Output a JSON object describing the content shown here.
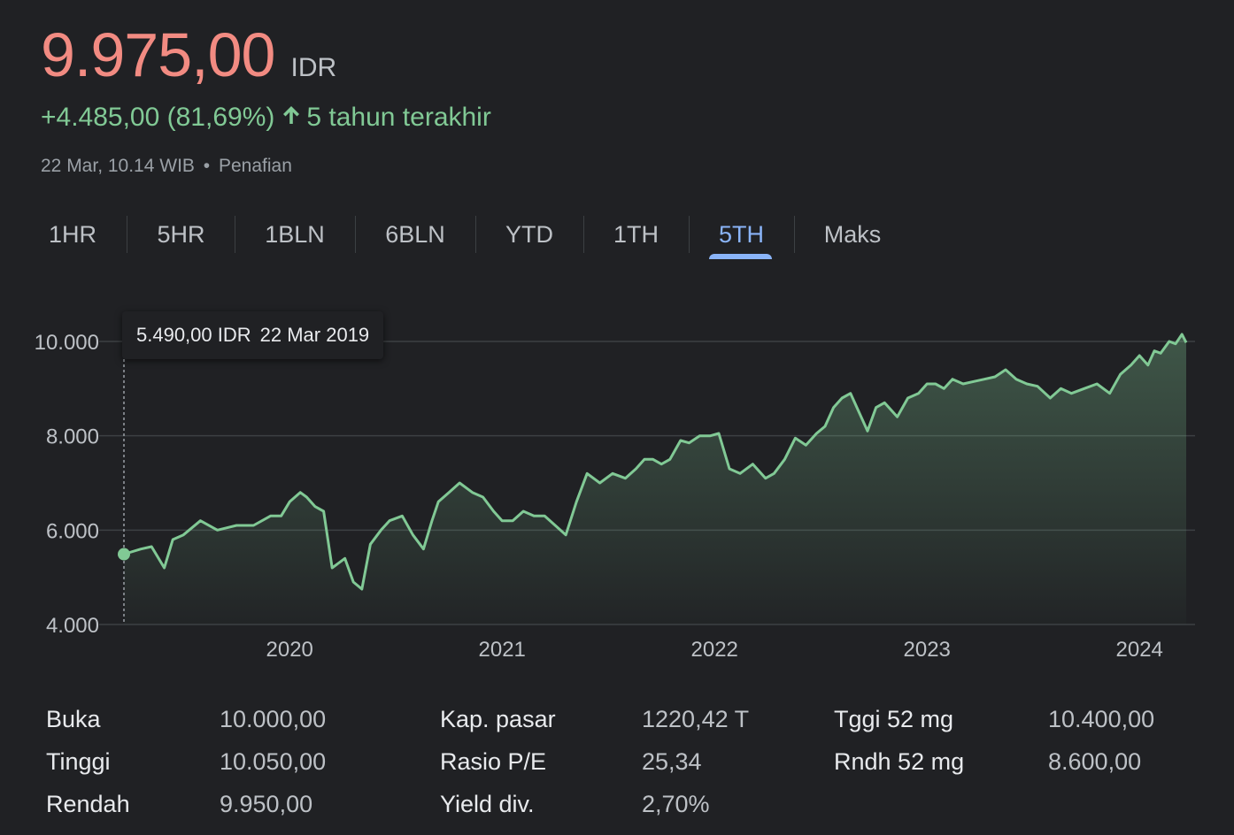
{
  "quote": {
    "price": "9.975,00",
    "currency": "IDR",
    "change": "+4.485,00 (81,69%)",
    "period_label": "5 tahun terakhir",
    "timestamp": "22 Mar, 10.14 WIB",
    "separator": "•",
    "disclaimer": "Penafian",
    "up_icon": "arrow-up-icon"
  },
  "tabs": [
    {
      "label": "1HR",
      "active": false
    },
    {
      "label": "5HR",
      "active": false
    },
    {
      "label": "1BLN",
      "active": false
    },
    {
      "label": "6BLN",
      "active": false
    },
    {
      "label": "YTD",
      "active": false
    },
    {
      "label": "1TH",
      "active": false
    },
    {
      "label": "5TH",
      "active": true
    },
    {
      "label": "Maks",
      "active": false
    }
  ],
  "tooltip": {
    "value": "5.490,00 IDR",
    "date": "22 Mar 2019"
  },
  "colors": {
    "background": "#202124",
    "price": "#f28b82",
    "positive": "#81c995",
    "accent": "#8ab4f8",
    "grid": "#3c4043"
  },
  "chart_data": {
    "type": "area",
    "title": "",
    "xlabel": "",
    "ylabel": "",
    "ylim": [
      4000,
      10000
    ],
    "y_ticks": [
      10000,
      8000,
      6000,
      4000
    ],
    "y_tick_labels": [
      "10.000",
      "8.000",
      "6.000",
      "4.000"
    ],
    "x_ticks": [
      2020,
      2021,
      2022,
      2023,
      2024
    ],
    "x_tick_labels": [
      "2020",
      "2021",
      "2022",
      "2023",
      "2024"
    ],
    "x_range": [
      2019.22,
      2024.22
    ],
    "grid": "horizontal",
    "legend": "none",
    "highlight_point": {
      "x": 2019.22,
      "y": 5490
    },
    "series": [
      {
        "color": "#81c995",
        "x": [
          2019.22,
          2019.3,
          2019.35,
          2019.41,
          2019.45,
          2019.5,
          2019.58,
          2019.66,
          2019.75,
          2019.83,
          2019.91,
          2019.96,
          2020.0,
          2020.05,
          2020.08,
          2020.12,
          2020.16,
          2020.2,
          2020.26,
          2020.3,
          2020.34,
          2020.38,
          2020.43,
          2020.47,
          2020.53,
          2020.58,
          2020.63,
          2020.67,
          2020.7,
          2020.75,
          2020.8,
          2020.86,
          2020.91,
          2020.96,
          2021.0,
          2021.05,
          2021.1,
          2021.15,
          2021.2,
          2021.25,
          2021.3,
          2021.35,
          2021.4,
          2021.46,
          2021.52,
          2021.58,
          2021.63,
          2021.67,
          2021.71,
          2021.75,
          2021.79,
          2021.84,
          2021.88,
          2021.93,
          2021.98,
          2022.02,
          2022.07,
          2022.12,
          2022.18,
          2022.24,
          2022.28,
          2022.33,
          2022.38,
          2022.43,
          2022.48,
          2022.52,
          2022.56,
          2022.6,
          2022.64,
          2022.68,
          2022.72,
          2022.76,
          2022.8,
          2022.86,
          2022.91,
          2022.96,
          2023.0,
          2023.04,
          2023.08,
          2023.12,
          2023.17,
          2023.22,
          2023.27,
          2023.32,
          2023.37,
          2023.42,
          2023.47,
          2023.52,
          2023.58,
          2023.63,
          2023.68,
          2023.74,
          2023.8,
          2023.86,
          2023.91,
          2023.96,
          2024.0,
          2024.04,
          2024.07,
          2024.1,
          2024.14,
          2024.17,
          2024.2,
          2024.22
        ],
        "y": [
          5490,
          5600,
          5650,
          5200,
          5800,
          5900,
          6200,
          6000,
          6100,
          6100,
          6300,
          6300,
          6600,
          6800,
          6700,
          6500,
          6400,
          5200,
          5400,
          4900,
          4750,
          5700,
          6000,
          6200,
          6300,
          5900,
          5600,
          6200,
          6600,
          6800,
          7000,
          6800,
          6700,
          6400,
          6200,
          6200,
          6400,
          6300,
          6300,
          6100,
          5900,
          6600,
          7200,
          7000,
          7200,
          7100,
          7300,
          7500,
          7500,
          7400,
          7500,
          7900,
          7850,
          8000,
          8000,
          8050,
          7300,
          7200,
          7400,
          7100,
          7200,
          7500,
          7950,
          7800,
          8050,
          8200,
          8600,
          8800,
          8900,
          8500,
          8100,
          8600,
          8700,
          8400,
          8800,
          8900,
          9100,
          9100,
          9000,
          9200,
          9100,
          9150,
          9200,
          9250,
          9400,
          9200,
          9100,
          9050,
          8800,
          9000,
          8900,
          9000,
          9100,
          8900,
          9300,
          9500,
          9700,
          9500,
          9800,
          9750,
          10000,
          9950,
          10150,
          9975
        ]
      }
    ]
  },
  "stats": [
    {
      "label": "Buka",
      "value": "10.000,00"
    },
    {
      "label": "Tinggi",
      "value": "10.050,00"
    },
    {
      "label": "Rendah",
      "value": "9.950,00"
    },
    {
      "label": "Kap. pasar",
      "value": "1220,42 T"
    },
    {
      "label": "Rasio P/E",
      "value": "25,34"
    },
    {
      "label": "Yield div.",
      "value": "2,70%"
    },
    {
      "label": "Tggi 52 mg",
      "value": "10.400,00"
    },
    {
      "label": "Rndh 52 mg",
      "value": "8.600,00"
    }
  ]
}
